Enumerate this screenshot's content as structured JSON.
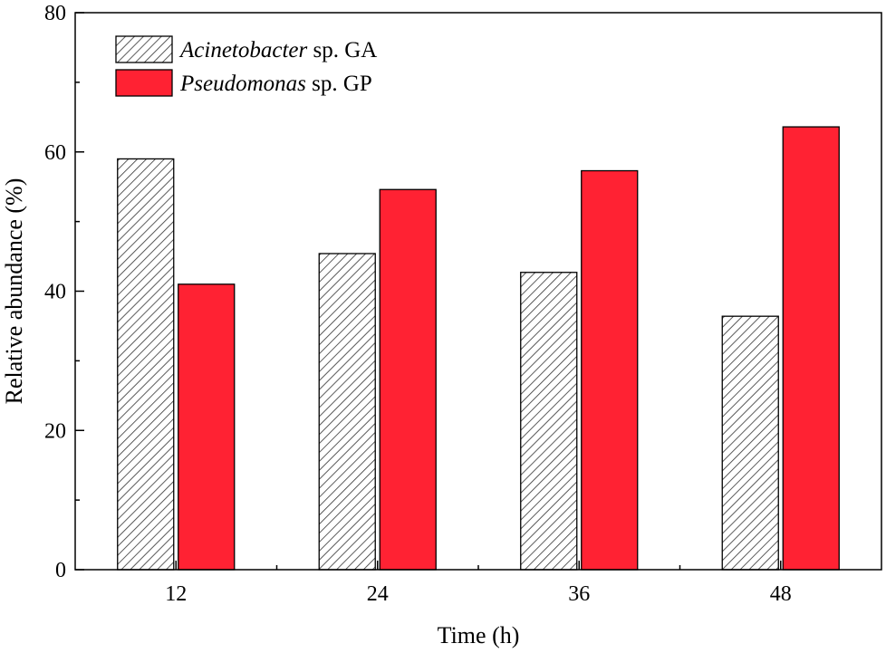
{
  "chart_data": {
    "type": "bar",
    "title": "",
    "xlabel": "Time (h)",
    "ylabel": "Relative abundance (%)",
    "categories": [
      "12",
      "24",
      "36",
      "48"
    ],
    "ylim": [
      0,
      80
    ],
    "yticks": [
      0,
      20,
      40,
      60,
      80
    ],
    "grid": false,
    "legend_position": "top-left",
    "series": [
      {
        "name_italic": "Acinetobacter",
        "name_rest": " sp. GA",
        "fill": "hatch",
        "values": [
          59,
          45.4,
          42.7,
          36.4
        ]
      },
      {
        "name_italic": "Pseudomonas",
        "name_rest": " sp. GP",
        "fill": "#ff2233",
        "values": [
          41,
          54.6,
          57.3,
          63.6
        ]
      }
    ]
  }
}
